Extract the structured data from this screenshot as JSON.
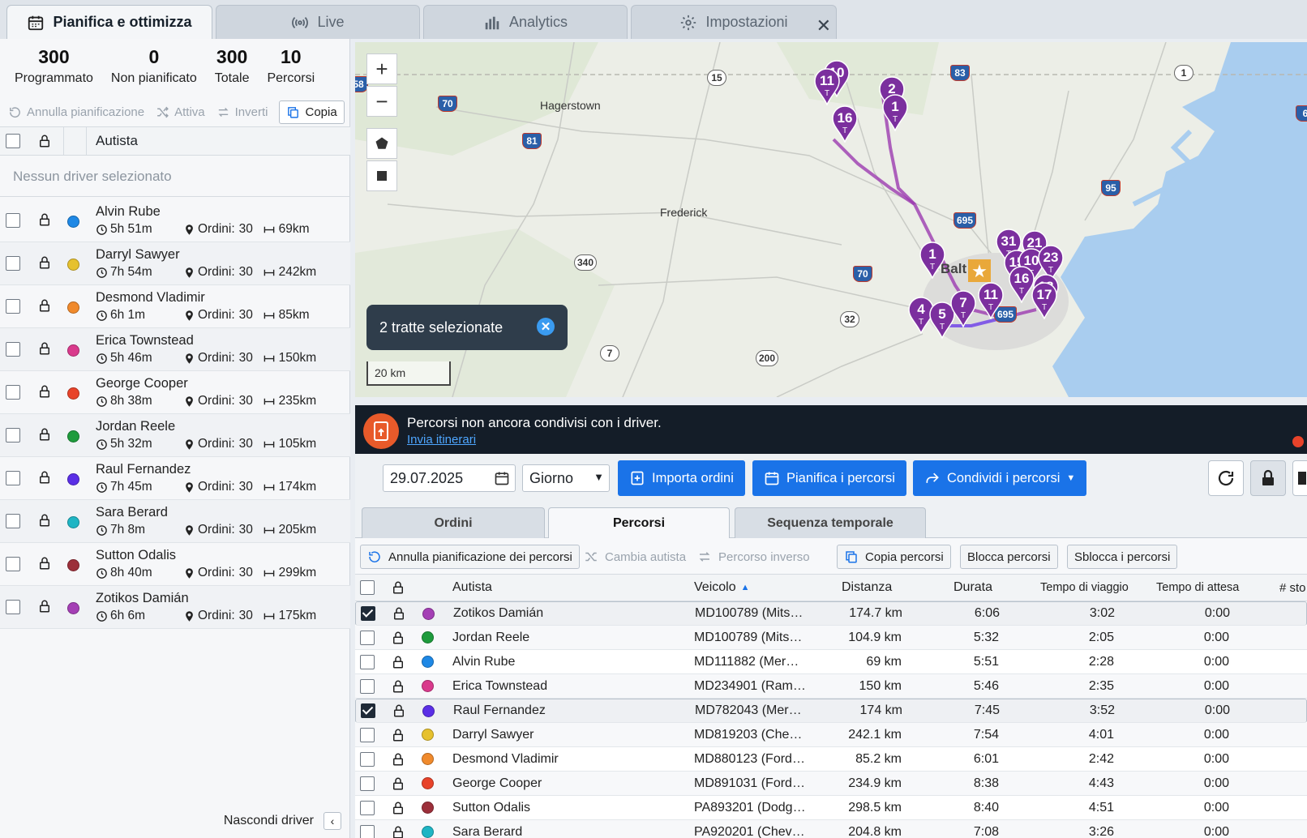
{
  "tabs": [
    {
      "label": "Pianifica e ottimizza",
      "icon": "calendar-icon"
    },
    {
      "label": "Live",
      "icon": "broadcast-icon"
    },
    {
      "label": "Analytics",
      "icon": "bar-chart-icon"
    },
    {
      "label": "Impostazioni",
      "icon": "gear-icon"
    }
  ],
  "stats": [
    {
      "value": "300",
      "label": "Programmato"
    },
    {
      "value": "0",
      "label": "Non pianificato"
    },
    {
      "value": "300",
      "label": "Totale"
    },
    {
      "value": "10",
      "label": "Percorsi"
    }
  ],
  "left_tools": {
    "unplan": "Annulla pianificazione",
    "activate": "Attiva",
    "invert": "Inverti",
    "copy": "Copia"
  },
  "left_header": {
    "driver": "Autista"
  },
  "no_driver": "Nessun driver selezionato",
  "orders_label": "Ordini:",
  "drivers": [
    {
      "name": "Alvin Rube",
      "time": "5h 51m",
      "orders": "30",
      "distance": "69km",
      "color": "#1e88e5"
    },
    {
      "name": "Darryl Sawyer",
      "time": "7h 54m",
      "orders": "30",
      "distance": "242km",
      "color": "#e6c12e"
    },
    {
      "name": "Desmond Vladimir",
      "time": "6h 1m",
      "orders": "30",
      "distance": "85km",
      "color": "#f08a2c"
    },
    {
      "name": "Erica Townstead",
      "time": "5h 46m",
      "orders": "30",
      "distance": "150km",
      "color": "#d93a8c"
    },
    {
      "name": "George Cooper",
      "time": "8h 38m",
      "orders": "30",
      "distance": "235km",
      "color": "#e8432a"
    },
    {
      "name": "Jordan Reele",
      "time": "5h 32m",
      "orders": "30",
      "distance": "105km",
      "color": "#1e9b3c"
    },
    {
      "name": "Raul Fernandez",
      "time": "7h 45m",
      "orders": "30",
      "distance": "174km",
      "color": "#5a2ee6"
    },
    {
      "name": "Sara Berard",
      "time": "7h 8m",
      "orders": "30",
      "distance": "205km",
      "color": "#1fb5c4"
    },
    {
      "name": "Sutton Odalis",
      "time": "8h 40m",
      "orders": "30",
      "distance": "299km",
      "color": "#9c2f3a"
    },
    {
      "name": "Zotikos Damián",
      "time": "6h 6m",
      "orders": "30",
      "distance": "175km",
      "color": "#a43fb5"
    }
  ],
  "hide_drivers": "Nascondi driver",
  "map": {
    "cities": [
      {
        "name": "Hagerstown"
      },
      {
        "name": "Frederick"
      },
      {
        "name": "Balt"
      }
    ],
    "road_shields": [
      "58",
      "70",
      "15",
      "83",
      "1",
      "81",
      "95",
      "695",
      "340",
      "70",
      "32",
      "7",
      "200",
      "695",
      "6"
    ],
    "pins": [
      "10",
      "11",
      "16",
      "2",
      "1",
      "1",
      "31",
      "21",
      "15",
      "10",
      "23",
      "16",
      "18",
      "17",
      "4",
      "5",
      "7",
      "11"
    ],
    "pin_sub": "T",
    "tooltip": "2 tratte selezionate",
    "scale": "20 km"
  },
  "banner": {
    "message": "Percorsi non ancora condivisi con i driver.",
    "link": "Invia itinerari"
  },
  "toolbar": {
    "date": "29.07.2025",
    "period": "Giorno",
    "import": "Importa ordini",
    "plan": "Pianifica i percorsi",
    "share": "Condividi i percorsi"
  },
  "subtabs": [
    "Ordini",
    "Percorsi",
    "Sequenza temporale"
  ],
  "actions": {
    "unplan": "Annulla pianificazione dei percorsi",
    "change": "Cambia autista",
    "reverse": "Percorso inverso",
    "copy": "Copia percorsi",
    "lock": "Blocca percorsi",
    "unlock": "Sblocca i percorsi"
  },
  "table": {
    "headers": {
      "driver": "Autista",
      "vehicle": "Veicolo",
      "distance": "Distanza",
      "duration": "Durata",
      "travel": "Tempo di viaggio",
      "wait": "Tempo di attesa",
      "stops": "# sto"
    },
    "rows": [
      {
        "checked": true,
        "color": "#a43fb5",
        "driver": "Zotikos Damián",
        "vehicle": "MD100789 (Mits…",
        "distance": "174.7 km",
        "duration": "6:06",
        "travel": "3:02",
        "wait": "0:00"
      },
      {
        "checked": false,
        "color": "#1e9b3c",
        "driver": "Jordan Reele",
        "vehicle": "MD100789 (Mits…",
        "distance": "104.9 km",
        "duration": "5:32",
        "travel": "2:05",
        "wait": "0:00"
      },
      {
        "checked": false,
        "color": "#1e88e5",
        "driver": "Alvin Rube",
        "vehicle": "MD111882 (Mer…",
        "distance": "69 km",
        "duration": "5:51",
        "travel": "2:28",
        "wait": "0:00"
      },
      {
        "checked": false,
        "color": "#d93a8c",
        "driver": "Erica Townstead",
        "vehicle": "MD234901 (Ram…",
        "distance": "150 km",
        "duration": "5:46",
        "travel": "2:35",
        "wait": "0:00"
      },
      {
        "checked": true,
        "color": "#5a2ee6",
        "driver": "Raul Fernandez",
        "vehicle": "MD782043 (Mer…",
        "distance": "174 km",
        "duration": "7:45",
        "travel": "3:52",
        "wait": "0:00"
      },
      {
        "checked": false,
        "color": "#e6c12e",
        "driver": "Darryl Sawyer",
        "vehicle": "MD819203 (Che…",
        "distance": "242.1 km",
        "duration": "7:54",
        "travel": "4:01",
        "wait": "0:00"
      },
      {
        "checked": false,
        "color": "#f08a2c",
        "driver": "Desmond Vladimir",
        "vehicle": "MD880123 (Ford…",
        "distance": "85.2 km",
        "duration": "6:01",
        "travel": "2:42",
        "wait": "0:00"
      },
      {
        "checked": false,
        "color": "#e8432a",
        "driver": "George Cooper",
        "vehicle": "MD891031 (Ford…",
        "distance": "234.9 km",
        "duration": "8:38",
        "travel": "4:43",
        "wait": "0:00"
      },
      {
        "checked": false,
        "color": "#9c2f3a",
        "driver": "Sutton Odalis",
        "vehicle": "PA893201 (Dodg…",
        "distance": "298.5 km",
        "duration": "8:40",
        "travel": "4:51",
        "wait": "0:00"
      },
      {
        "checked": false,
        "color": "#1fb5c4",
        "driver": "Sara Berard",
        "vehicle": "PA920201 (Chev…",
        "distance": "204.8 km",
        "duration": "7:08",
        "travel": "3:26",
        "wait": "0:00"
      }
    ]
  }
}
